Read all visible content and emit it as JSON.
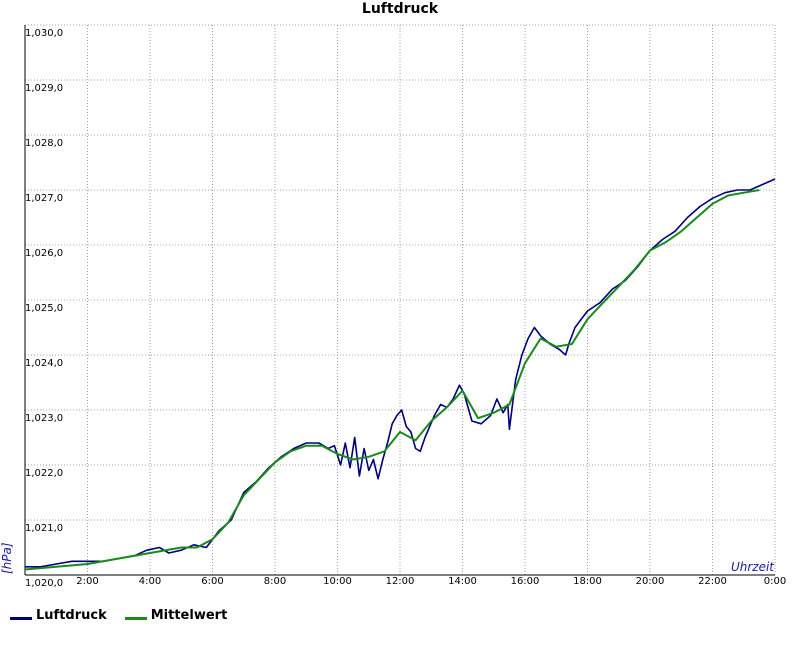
{
  "chart_data": {
    "type": "line",
    "title": "Luftdruck",
    "xlabel": "Uhrzeit",
    "ylabel": "[hPa]",
    "xlim": [
      0,
      24
    ],
    "ylim": [
      1020.0,
      1030.0
    ],
    "x_ticks": [
      0,
      2,
      4,
      6,
      8,
      10,
      12,
      14,
      16,
      18,
      20,
      22,
      24
    ],
    "x_tick_labels": [
      "",
      "2:00",
      "4:00",
      "6:00",
      "8:00",
      "10:00",
      "12:00",
      "14:00",
      "16:00",
      "18:00",
      "20:00",
      "22:00",
      "0:00"
    ],
    "y_ticks": [
      1020.0,
      1021.0,
      1022.0,
      1023.0,
      1024.0,
      1025.0,
      1026.0,
      1027.0,
      1028.0,
      1029.0,
      1030.0
    ],
    "y_tick_labels": [
      "1,020,0",
      "1,021,0",
      "1,022,0",
      "1,023,0",
      "1,024,0",
      "1,025,0",
      "1,026,0",
      "1,027,0",
      "1,028,0",
      "1,029,0",
      "1,030,0"
    ],
    "grid": true,
    "legend_position": "bottom-left",
    "series": [
      {
        "name": "Luftdruck",
        "color": "#00007f",
        "x": [
          0,
          0.5,
          1,
          1.5,
          2,
          2.5,
          3,
          3.5,
          3.9,
          4.3,
          4.6,
          5,
          5.4,
          5.8,
          6.2,
          6.6,
          7,
          7.4,
          7.8,
          8.2,
          8.6,
          9,
          9.4,
          9.7,
          9.9,
          10.1,
          10.25,
          10.4,
          10.55,
          10.7,
          10.85,
          11,
          11.15,
          11.3,
          11.45,
          11.6,
          11.75,
          11.9,
          12.05,
          12.2,
          12.35,
          12.5,
          12.65,
          12.8,
          12.95,
          13.1,
          13.3,
          13.5,
          13.7,
          13.9,
          14.05,
          14.3,
          14.6,
          14.9,
          15.1,
          15.3,
          15.45,
          15.5,
          15.7,
          15.9,
          16.1,
          16.3,
          16.5,
          16.8,
          17.1,
          17.3,
          17.4,
          17.6,
          18,
          18.4,
          18.8,
          19.2,
          19.6,
          20,
          20.4,
          20.8,
          21.2,
          21.6,
          22,
          22.4,
          22.8,
          23.2,
          23.6,
          24
        ],
        "values": [
          1020.15,
          1020.15,
          1020.2,
          1020.25,
          1020.25,
          1020.25,
          1020.3,
          1020.35,
          1020.45,
          1020.5,
          1020.4,
          1020.45,
          1020.55,
          1020.5,
          1020.8,
          1021.0,
          1021.5,
          1021.7,
          1021.95,
          1022.15,
          1022.3,
          1022.4,
          1022.4,
          1022.3,
          1022.35,
          1022.0,
          1022.4,
          1021.95,
          1022.5,
          1021.8,
          1022.3,
          1021.9,
          1022.1,
          1021.75,
          1022.1,
          1022.4,
          1022.75,
          1022.9,
          1023.0,
          1022.7,
          1022.6,
          1022.3,
          1022.25,
          1022.5,
          1022.7,
          1022.9,
          1023.1,
          1023.05,
          1023.2,
          1023.45,
          1023.3,
          1022.8,
          1022.75,
          1022.9,
          1023.2,
          1022.95,
          1023.1,
          1022.65,
          1023.55,
          1024.0,
          1024.3,
          1024.5,
          1024.35,
          1024.2,
          1024.1,
          1024.0,
          1024.2,
          1024.5,
          1024.8,
          1024.95,
          1025.2,
          1025.35,
          1025.6,
          1025.9,
          1026.1,
          1026.25,
          1026.5,
          1026.7,
          1026.85,
          1026.95,
          1027.0,
          1027.0,
          1027.1,
          1027.2
        ]
      },
      {
        "name": "Mittelwert",
        "color": "#1a8a1a",
        "x": [
          0,
          1,
          2,
          3,
          4,
          5,
          5.5,
          6,
          6.5,
          7,
          7.5,
          8,
          8.5,
          9,
          9.5,
          10,
          10.5,
          11,
          11.5,
          12,
          12.5,
          13,
          13.5,
          14,
          14.5,
          15,
          15.5,
          16,
          16.5,
          17,
          17.5,
          18,
          18.5,
          19,
          19.5,
          20,
          20.5,
          21,
          21.5,
          22,
          22.5,
          23,
          23.5
        ],
        "values": [
          1020.1,
          1020.15,
          1020.2,
          1020.3,
          1020.4,
          1020.5,
          1020.5,
          1020.65,
          1020.95,
          1021.45,
          1021.75,
          1022.05,
          1022.25,
          1022.35,
          1022.35,
          1022.2,
          1022.1,
          1022.15,
          1022.25,
          1022.6,
          1022.45,
          1022.8,
          1023.05,
          1023.35,
          1022.85,
          1022.95,
          1023.1,
          1023.85,
          1024.3,
          1024.15,
          1024.2,
          1024.65,
          1024.95,
          1025.25,
          1025.55,
          1025.9,
          1026.05,
          1026.25,
          1026.5,
          1026.75,
          1026.9,
          1026.95,
          1027.0
        ]
      }
    ]
  }
}
